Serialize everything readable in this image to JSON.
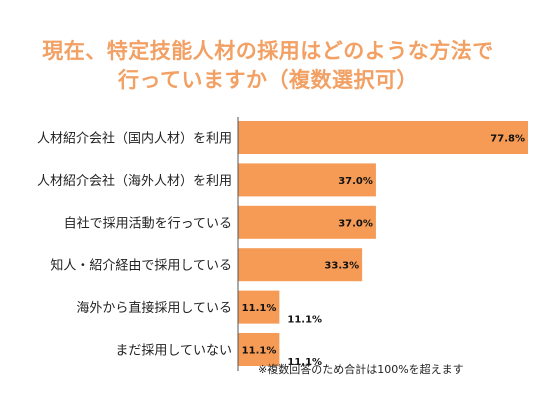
{
  "title": {
    "line1": "現在、特定技能人材の採用はどのような方法で",
    "line2": "行っていますか（複数選択可）"
  },
  "colors": {
    "bar": "#f59b55",
    "title": "#f2a064",
    "axis": "#555555"
  },
  "note": "※複数回答のため合計は100%を超えます",
  "chart_data": {
    "type": "bar",
    "orientation": "horizontal",
    "title": "現在、特定技能人材の採用はどのような方法で行っていますか（複数選択可）",
    "unit": "%",
    "xlim": [
      0,
      77.8
    ],
    "categories": [
      "人材紹介会社（国内人材）を利用",
      "人材紹介会社（海外人材）を利用",
      "自社で採用活動を行っている",
      "知人・紹介経由で採用している",
      "海外から直接採用している",
      "まだ採用していない"
    ],
    "values": [
      77.8,
      37.0,
      37.0,
      33.3,
      11.1,
      11.1
    ],
    "labels": [
      "77.8%",
      "37.0%",
      "37.0%",
      "33.3%",
      "11.1%",
      "11.1%"
    ],
    "outside_labels": [
      "",
      "",
      "",
      "",
      "11.1%",
      "11.1%"
    ]
  }
}
